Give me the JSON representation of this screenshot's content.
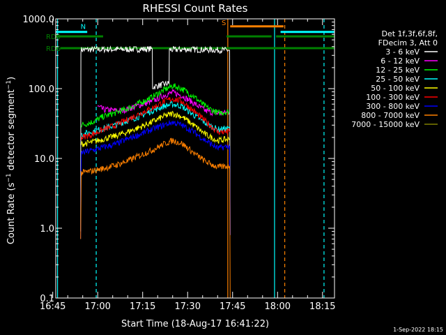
{
  "chart_data": {
    "type": "line",
    "title": "RHESSI Count Rates",
    "xlabel": "Start Time (18-Aug-17 16:41:22)",
    "ylabel": "Count Rate (s⁻¹ detector segment⁻¹)",
    "ylabel_parts": [
      "Count Rate (s",
      "−1",
      " detector segment",
      "−1",
      ")"
    ],
    "y_scale": "log",
    "ylim": [
      0.1,
      1000
    ],
    "y_ticks": [
      {
        "value": 0.1,
        "label": "0.1"
      },
      {
        "value": 1,
        "label": "1.0"
      },
      {
        "value": 10,
        "label": "10.0"
      },
      {
        "value": 100,
        "label": "100.0"
      },
      {
        "value": 1000,
        "label": "1000.0"
      }
    ],
    "xlim_minutes": [
      16.0,
      109.0
    ],
    "x_ticks": [
      {
        "minutes": 15,
        "label": "16:45"
      },
      {
        "minutes": 30,
        "label": "17:00"
      },
      {
        "minutes": 45,
        "label": "17:15"
      },
      {
        "minutes": 60,
        "label": "17:30"
      },
      {
        "minutes": 75,
        "label": "17:45"
      },
      {
        "minutes": 90,
        "label": "18:00"
      },
      {
        "minutes": 105,
        "label": "18:15"
      }
    ],
    "legend": {
      "placement": "right",
      "header": [
        "Det 1f,3f,6f,8f,",
        "FDecim 3, Att 0"
      ]
    },
    "series": [
      {
        "name": "3 - 6 keV",
        "color": "#ffffff",
        "points": [
          [
            24.3,
            0.9
          ],
          [
            24.4,
            360
          ],
          [
            30,
            365
          ],
          [
            40,
            365
          ],
          [
            48.2,
            370
          ],
          [
            48.3,
            105
          ],
          [
            50,
            110
          ],
          [
            52,
            115
          ],
          [
            53.8,
            120
          ],
          [
            53.9,
            360
          ],
          [
            60,
            365
          ],
          [
            67,
            360
          ],
          [
            74,
            355
          ],
          [
            74.2,
            0.8
          ]
        ]
      },
      {
        "name": "6 - 12 keV",
        "color": "#ff00ff",
        "points": [
          [
            30,
            55
          ],
          [
            32,
            50
          ],
          [
            38,
            48
          ],
          [
            44,
            58
          ],
          [
            48,
            65
          ],
          [
            52,
            80
          ],
          [
            55,
            88
          ],
          [
            58,
            80
          ],
          [
            62,
            62
          ],
          [
            66,
            48
          ],
          [
            70,
            44
          ],
          [
            74,
            46
          ]
        ]
      },
      {
        "name": "12 - 25 keV",
        "color": "#00ff00",
        "points": [
          [
            24.5,
            30
          ],
          [
            28,
            33
          ],
          [
            32,
            40
          ],
          [
            36,
            45
          ],
          [
            40,
            52
          ],
          [
            44,
            62
          ],
          [
            48,
            75
          ],
          [
            52,
            95
          ],
          [
            55,
            110
          ],
          [
            58,
            100
          ],
          [
            62,
            78
          ],
          [
            66,
            55
          ],
          [
            70,
            45
          ],
          [
            74,
            47
          ]
        ]
      },
      {
        "name": "25 - 50 keV",
        "color": "#00ffff",
        "points": [
          [
            24.5,
            22
          ],
          [
            28,
            24
          ],
          [
            32,
            27
          ],
          [
            36,
            30
          ],
          [
            40,
            35
          ],
          [
            44,
            40
          ],
          [
            48,
            48
          ],
          [
            52,
            56
          ],
          [
            55,
            60
          ],
          [
            58,
            56
          ],
          [
            62,
            42
          ],
          [
            66,
            32
          ],
          [
            70,
            26
          ],
          [
            74,
            27
          ]
        ]
      },
      {
        "name": "50 - 100 keV",
        "color": "#ffff00",
        "points": [
          [
            24.5,
            16
          ],
          [
            28,
            17
          ],
          [
            32,
            19
          ],
          [
            36,
            21
          ],
          [
            40,
            24
          ],
          [
            44,
            28
          ],
          [
            48,
            33
          ],
          [
            52,
            40
          ],
          [
            55,
            44
          ],
          [
            58,
            40
          ],
          [
            62,
            30
          ],
          [
            66,
            22
          ],
          [
            70,
            18
          ],
          [
            74,
            19
          ]
        ]
      },
      {
        "name": "100 - 300 keV",
        "color": "#ff0000",
        "points": [
          [
            24.5,
            20
          ],
          [
            28,
            22
          ],
          [
            32,
            26
          ],
          [
            36,
            30
          ],
          [
            40,
            36
          ],
          [
            44,
            44
          ],
          [
            48,
            52
          ],
          [
            52,
            65
          ],
          [
            55,
            72
          ],
          [
            58,
            66
          ],
          [
            62,
            48
          ],
          [
            66,
            34
          ],
          [
            70,
            24
          ],
          [
            74,
            24
          ]
        ]
      },
      {
        "name": "300 - 800 keV",
        "color": "#0000ff",
        "points": [
          [
            24.3,
            0.7
          ],
          [
            24.5,
            12
          ],
          [
            28,
            13
          ],
          [
            32,
            14.5
          ],
          [
            36,
            16
          ],
          [
            40,
            19
          ],
          [
            44,
            22
          ],
          [
            48,
            26
          ],
          [
            52,
            30
          ],
          [
            55,
            33
          ],
          [
            58,
            30
          ],
          [
            62,
            24
          ],
          [
            66,
            18
          ],
          [
            70,
            14
          ],
          [
            74,
            15
          ],
          [
            74.2,
            0.8
          ]
        ]
      },
      {
        "name": "800 - 7000 keV",
        "color": "#ff8000",
        "points": [
          [
            24.3,
            0.7
          ],
          [
            24.5,
            6.2
          ],
          [
            28,
            6.6
          ],
          [
            32,
            7.2
          ],
          [
            36,
            8
          ],
          [
            40,
            9.2
          ],
          [
            44,
            11
          ],
          [
            48,
            13
          ],
          [
            52,
            16
          ],
          [
            55,
            18
          ],
          [
            58,
            16.5
          ],
          [
            62,
            12
          ],
          [
            66,
            9
          ],
          [
            70,
            7.5
          ],
          [
            74,
            7.8
          ],
          [
            74.2,
            0.1
          ]
        ]
      },
      {
        "name": "7000 - 15000 keV",
        "color": "#808000",
        "points": []
      }
    ],
    "annotations": {
      "attenuator_bars": [
        {
          "label": "RD0",
          "color": "#008000",
          "y": 560,
          "segments": [
            [
              16.0,
              31.8
            ],
            [
              73.0,
              88.0
            ],
            [
              89.5,
              109.0
            ]
          ]
        },
        {
          "label": "RD6",
          "color": "#008000",
          "y": 380,
          "segments": [
            [
              16.0,
              16.5
            ],
            [
              17.5,
              109.0
            ]
          ]
        },
        {
          "label": "N",
          "color": "#00ffff",
          "y": 650,
          "segments": [
            [
              16.0,
              26.5
            ],
            [
              91.0,
              109.0
            ]
          ]
        },
        {
          "label": "S",
          "color": "#ff8000",
          "y": 780,
          "segments": [
            [
              74.2,
              92.0
            ]
          ]
        }
      ],
      "vertical_lines": [
        {
          "minutes": 16.6,
          "color": "#00ffff",
          "dashed": false
        },
        {
          "minutes": 29.5,
          "color": "#00ffff",
          "dashed": true
        },
        {
          "minutes": 73.4,
          "color": "#ff8000",
          "dashed": false
        },
        {
          "minutes": 89.0,
          "color": "#00ffff",
          "dashed": false
        },
        {
          "minutes": 92.4,
          "color": "#ff8000",
          "dashed": true
        },
        {
          "minutes": 105.5,
          "color": "#00ffff",
          "dashed": true
        }
      ]
    }
  },
  "footer": {
    "timestamp": "1-Sep-2022 18:15"
  }
}
